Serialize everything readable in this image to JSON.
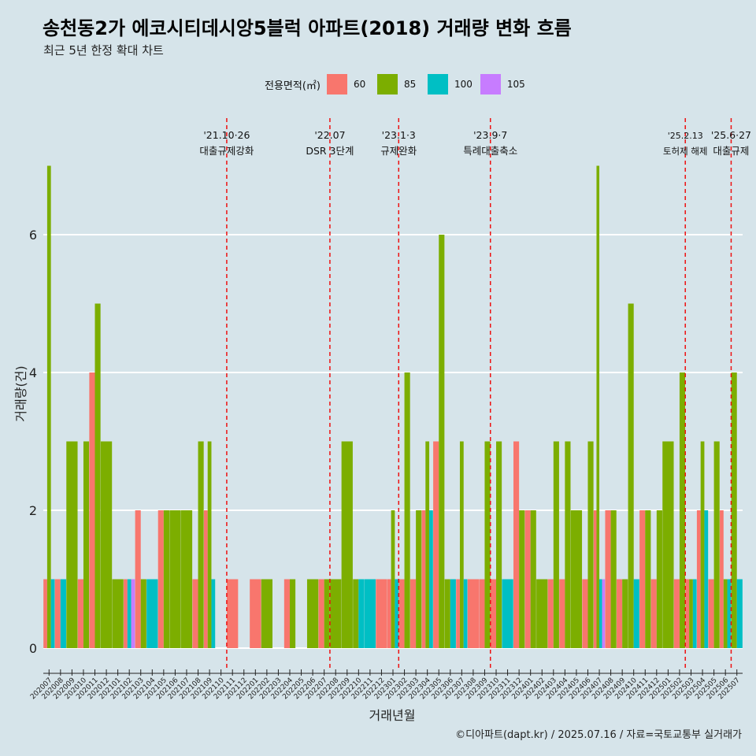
{
  "title": "송천동2가 에코시티데시앙5블럭 아파트(2018) 거래량 변화 흐름",
  "subtitle": "최근 5년 한정 확대 차트",
  "caption": "©디아파트(dapt.kr) / 2025.07.16 / 자료=국토교통부 실거래가",
  "legend": {
    "title": "전용면적(㎡)",
    "items": [
      {
        "label": "60",
        "color": "#F8766D"
      },
      {
        "label": "85",
        "color": "#7CAE00"
      },
      {
        "label": "100",
        "color": "#00BFC4"
      },
      {
        "label": "105",
        "color": "#C77CFF"
      }
    ]
  },
  "chart_data": {
    "type": "bar",
    "xlabel": "거래년월",
    "ylabel": "거래량(건)",
    "ylim": [
      0,
      7.2
    ],
    "yticks": [
      0,
      2,
      4,
      6
    ],
    "grid": true,
    "legend_position": "top",
    "categories": [
      "202007",
      "202008",
      "202009",
      "202010",
      "202011",
      "202012",
      "202101",
      "202102",
      "202103",
      "202104",
      "202105",
      "202106",
      "202107",
      "202108",
      "202109",
      "202110",
      "202111",
      "202112",
      "202201",
      "202202",
      "202203",
      "202204",
      "202205",
      "202206",
      "202207",
      "202208",
      "202209",
      "202210",
      "202211",
      "202212",
      "202301",
      "202302",
      "202303",
      "202304",
      "202305",
      "202306",
      "202307",
      "202308",
      "202309",
      "202310",
      "202311",
      "202312",
      "202401",
      "202402",
      "202403",
      "202404",
      "202405",
      "202406",
      "202407",
      "202408",
      "202409",
      "202410",
      "202411",
      "202412",
      "202501",
      "202502",
      "202503",
      "202504",
      "202505",
      "202506",
      "202507"
    ],
    "series": [
      {
        "name": "60",
        "color": "#F8766D",
        "values": [
          1,
          1,
          0,
          1,
          4,
          0,
          0,
          1,
          2,
          0,
          2,
          0,
          0,
          1,
          2,
          0,
          1,
          0,
          1,
          0,
          0,
          1,
          0,
          0,
          1,
          0,
          0,
          0,
          0,
          1,
          1,
          1,
          1,
          2,
          3,
          0,
          1,
          1,
          1,
          1,
          0,
          3,
          2,
          0,
          1,
          1,
          0,
          1,
          2,
          2,
          1,
          0,
          2,
          1,
          0,
          1,
          1,
          2,
          1,
          2,
          0
        ]
      },
      {
        "name": "85",
        "color": "#7CAE00",
        "values": [
          7,
          0,
          3,
          3,
          5,
          3,
          1,
          0,
          1,
          0,
          2,
          2,
          2,
          3,
          3,
          0,
          0,
          0,
          0,
          1,
          0,
          1,
          0,
          1,
          1,
          1,
          3,
          1,
          0,
          0,
          2,
          4,
          2,
          3,
          6,
          1,
          3,
          0,
          3,
          3,
          0,
          2,
          2,
          1,
          3,
          3,
          2,
          3,
          7,
          2,
          1,
          5,
          2,
          2,
          3,
          4,
          1,
          3,
          3,
          1,
          4
        ]
      },
      {
        "name": "100",
        "color": "#00BFC4",
        "values": [
          1,
          1,
          0,
          0,
          0,
          0,
          0,
          1,
          0,
          1,
          0,
          0,
          0,
          0,
          1,
          0,
          0,
          0,
          0,
          0,
          0,
          0,
          0,
          0,
          0,
          0,
          0,
          1,
          1,
          0,
          1,
          0,
          0,
          2,
          0,
          1,
          1,
          0,
          0,
          0,
          1,
          0,
          0,
          0,
          0,
          0,
          0,
          0,
          1,
          0,
          0,
          1,
          0,
          0,
          0,
          0,
          1,
          2,
          0,
          1,
          1
        ]
      },
      {
        "name": "105",
        "color": "#C77CFF",
        "values": [
          0,
          0,
          0,
          0,
          0,
          0,
          0,
          1,
          0,
          0,
          0,
          0,
          0,
          0,
          0,
          0,
          0,
          0,
          0,
          0,
          0,
          0,
          0,
          0,
          0,
          0,
          0,
          0,
          0,
          0,
          0,
          0,
          0,
          0,
          0,
          0,
          0,
          0,
          0,
          0,
          0,
          0,
          0,
          0,
          0,
          0,
          0,
          0,
          1,
          0,
          0,
          0,
          0,
          0,
          0,
          0,
          0,
          0,
          0,
          0,
          0
        ]
      }
    ],
    "annotations": [
      {
        "date": "'21.10·26",
        "label": "대출규제강화",
        "category": "202110"
      },
      {
        "date": "'22.07",
        "label": "DSR 3단계",
        "category": "202207"
      },
      {
        "date": "'23.1·3",
        "label": "규제완화",
        "category": "202301"
      },
      {
        "date": "'23.9·7",
        "label": "특례대출축소",
        "category": "202309"
      },
      {
        "date": "'25.2.13",
        "label": "토허제 해제",
        "category": "202502"
      },
      {
        "date": "'25.6·27",
        "label": "대출규제",
        "category": "202506"
      }
    ]
  }
}
